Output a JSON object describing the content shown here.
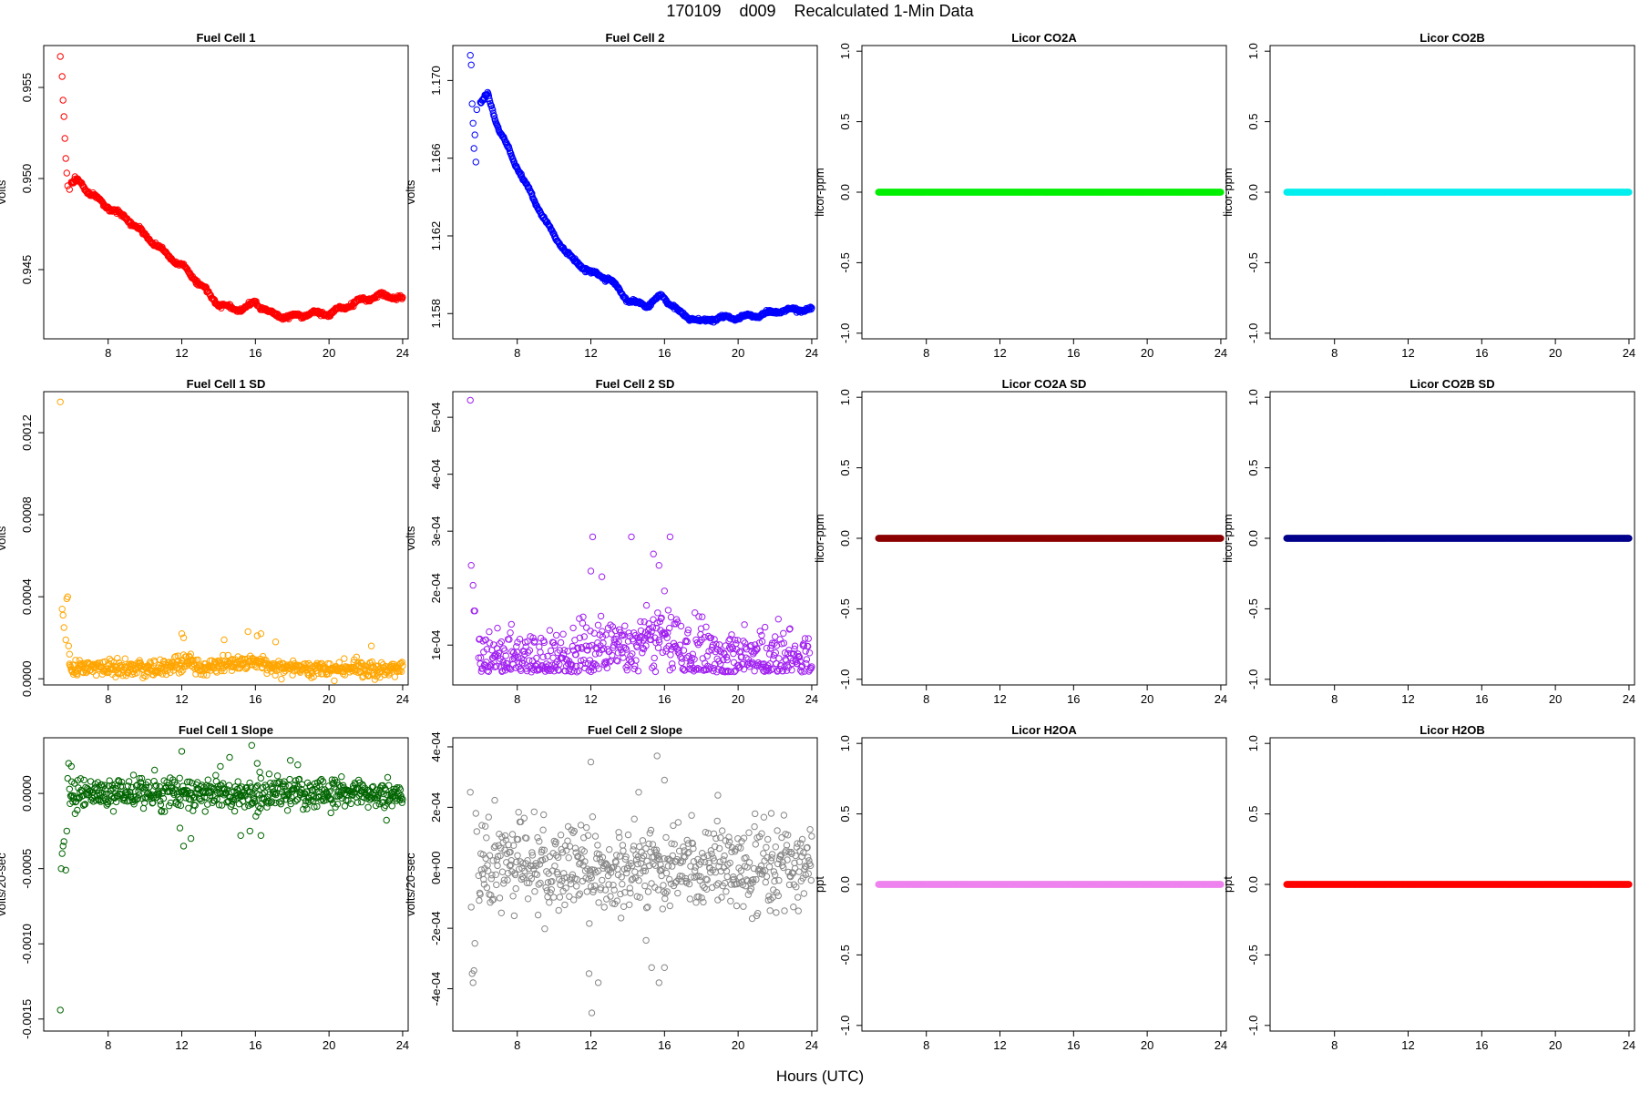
{
  "title": "170109    d009    Recalculated 1-Min Data",
  "x_axis_title": "Hours (UTC)",
  "chart_data": [
    {
      "id": "fc1",
      "type": "scatter",
      "title": "Fuel Cell 1",
      "ylabel": "volts",
      "color": "#ff0000",
      "xlim": [
        4.5,
        24.3
      ],
      "ylim": [
        0.9412,
        0.9573
      ],
      "xticks": [
        8,
        12,
        16,
        20,
        24
      ],
      "yticks": [
        0.945,
        0.95,
        0.955
      ],
      "ytick_labels": [
        "0.945",
        "0.950",
        "0.955"
      ],
      "points": [
        [
          5.4,
          0.9567
        ],
        [
          5.5,
          0.9556
        ],
        [
          5.55,
          0.9543
        ],
        [
          5.6,
          0.9534
        ],
        [
          5.65,
          0.9522
        ],
        [
          5.7,
          0.9511
        ],
        [
          5.75,
          0.9503
        ],
        [
          5.8,
          0.9496
        ],
        [
          5.9,
          0.9494
        ],
        [
          6.0,
          0.9498
        ],
        [
          6.2,
          0.9501
        ]
      ],
      "trend": [
        [
          6.0,
          0.9497
        ],
        [
          6.4,
          0.9499
        ],
        [
          7.0,
          0.9492
        ],
        [
          8.0,
          0.9484
        ],
        [
          9.0,
          0.9478
        ],
        [
          10.0,
          0.9469
        ],
        [
          11.0,
          0.946
        ],
        [
          12.0,
          0.9452
        ],
        [
          13.0,
          0.9442
        ],
        [
          14.0,
          0.9431
        ],
        [
          15.0,
          0.9428
        ],
        [
          15.5,
          0.9429
        ],
        [
          16.0,
          0.9432
        ],
        [
          17.0,
          0.9425
        ],
        [
          18.0,
          0.9424
        ],
        [
          19.0,
          0.9426
        ],
        [
          20.0,
          0.9426
        ],
        [
          21.0,
          0.943
        ],
        [
          22.0,
          0.9434
        ],
        [
          23.0,
          0.9436
        ],
        [
          24.0,
          0.9434
        ]
      ],
      "noise": 0.00012,
      "spread": 0.2,
      "n": 600
    },
    {
      "id": "fc2",
      "type": "scatter",
      "title": "Fuel Cell 2",
      "ylabel": "volts",
      "color": "#0000ff",
      "xlim": [
        4.5,
        24.3
      ],
      "ylim": [
        1.1567,
        1.1718
      ],
      "xticks": [
        8,
        12,
        16,
        20,
        24
      ],
      "yticks": [
        1.158,
        1.162,
        1.166,
        1.17
      ],
      "ytick_labels": [
        "1.158",
        "1.162",
        "1.166",
        "1.170"
      ],
      "points": [
        [
          5.45,
          1.1713
        ],
        [
          5.5,
          1.1708
        ],
        [
          5.55,
          1.1688
        ],
        [
          5.6,
          1.1678
        ],
        [
          5.65,
          1.1665
        ],
        [
          5.7,
          1.1672
        ],
        [
          5.75,
          1.1658
        ],
        [
          5.8,
          1.1685
        ]
      ],
      "trend": [
        [
          6.0,
          1.1688
        ],
        [
          6.4,
          1.1693
        ],
        [
          7.0,
          1.1675
        ],
        [
          8.0,
          1.1655
        ],
        [
          9.0,
          1.1637
        ],
        [
          10.0,
          1.162
        ],
        [
          11.0,
          1.1608
        ],
        [
          12.0,
          1.1601
        ],
        [
          13.0,
          1.1598
        ],
        [
          14.0,
          1.1587
        ],
        [
          15.0,
          1.1584
        ],
        [
          15.8,
          1.1589
        ],
        [
          16.5,
          1.1584
        ],
        [
          17.0,
          1.1579
        ],
        [
          18.0,
          1.1576
        ],
        [
          19.0,
          1.1578
        ],
        [
          20.0,
          1.1578
        ],
        [
          21.0,
          1.1579
        ],
        [
          22.0,
          1.1581
        ],
        [
          23.0,
          1.1582
        ],
        [
          24.0,
          1.1582
        ]
      ],
      "noise": 0.0001,
      "spread": 0.2,
      "n": 600
    },
    {
      "id": "co2a",
      "type": "scatter",
      "title": "Licor CO2A",
      "ylabel": "licor-ppm",
      "color": "#00ee00",
      "xlim": [
        4.5,
        24.3
      ],
      "ylim": [
        -1.04,
        1.04
      ],
      "xticks": [
        8,
        12,
        16,
        20,
        24
      ],
      "yticks": [
        -1,
        -0.5,
        0,
        0.5,
        1
      ],
      "ytick_labels": [
        "-1.0",
        "-0.5",
        "0.0",
        "0.5",
        "1.0"
      ],
      "constant": 0,
      "x_range": [
        5.4,
        24.0
      ],
      "n": 560
    },
    {
      "id": "co2b",
      "type": "scatter",
      "title": "Licor CO2B",
      "ylabel": "licor-ppm",
      "color": "#00eeee",
      "xlim": [
        4.5,
        24.3
      ],
      "ylim": [
        -1.04,
        1.04
      ],
      "xticks": [
        8,
        12,
        16,
        20,
        24
      ],
      "yticks": [
        -1,
        -0.5,
        0,
        0.5,
        1
      ],
      "ytick_labels": [
        "-1.0",
        "-0.5",
        "0.0",
        "0.5",
        "1.0"
      ],
      "constant": 0,
      "x_range": [
        5.4,
        24.0
      ],
      "n": 560
    },
    {
      "id": "fc1sd",
      "type": "scatter",
      "title": "Fuel Cell 1 SD",
      "ylabel": "volts",
      "color": "#ffa500",
      "xlim": [
        4.5,
        24.3
      ],
      "ylim": [
        -3e-05,
        0.0014
      ],
      "xticks": [
        8,
        12,
        16,
        20,
        24
      ],
      "yticks": [
        0,
        0.0004,
        0.0008,
        0.0012
      ],
      "ytick_labels": [
        "0.0000",
        "0.0004",
        "0.0008",
        "0.0012"
      ],
      "points": [
        [
          5.4,
          0.00135
        ],
        [
          5.5,
          0.00034
        ],
        [
          5.55,
          0.00031
        ],
        [
          5.6,
          0.00025
        ],
        [
          5.7,
          0.00019
        ],
        [
          5.75,
          0.00039
        ],
        [
          5.8,
          0.0004
        ],
        [
          5.85,
          0.00016
        ],
        [
          5.9,
          0.00012
        ],
        [
          12.0,
          0.00022
        ],
        [
          12.1,
          0.0002
        ],
        [
          14.3,
          0.00019
        ],
        [
          15.6,
          0.00023
        ],
        [
          16.1,
          0.00021
        ],
        [
          16.3,
          0.00022
        ],
        [
          17.1,
          0.00018
        ],
        [
          22.3,
          0.00016
        ]
      ],
      "baseline": 5e-05,
      "scale": 2e-05,
      "bumps": [
        [
          12,
          2,
          3e-05
        ],
        [
          14.8,
          3,
          2e-05
        ],
        [
          16,
          2,
          3e-05
        ]
      ],
      "n": 600
    },
    {
      "id": "fc2sd",
      "type": "scatter",
      "title": "Fuel Cell 2 SD",
      "ylabel": "volts",
      "color": "#a020f0",
      "xlim": [
        4.5,
        24.3
      ],
      "ylim": [
        3e-05,
        0.000545
      ],
      "xticks": [
        8,
        12,
        16,
        20,
        24
      ],
      "yticks": [
        0.0001,
        0.0002,
        0.0003,
        0.0004,
        0.0005
      ],
      "ytick_labels": [
        "1e-04",
        "2e-04",
        "3e-04",
        "4e-04",
        "5e-04"
      ],
      "points": [
        [
          5.45,
          0.00053
        ],
        [
          5.5,
          0.00024
        ],
        [
          5.6,
          0.000205
        ],
        [
          5.65,
          0.00016
        ],
        [
          5.7,
          0.00016
        ],
        [
          12.1,
          0.00029
        ],
        [
          12.0,
          0.00023
        ],
        [
          12.6,
          0.00022
        ],
        [
          14.2,
          0.00029
        ],
        [
          15.4,
          0.00026
        ],
        [
          16.3,
          0.00029
        ],
        [
          16.0,
          0.000195
        ],
        [
          15.7,
          0.00024
        ]
      ],
      "baseline": 7.5e-05,
      "scale": 3e-05,
      "bumps": [
        [
          12.5,
          4,
          2e-05
        ],
        [
          15.5,
          3,
          4e-05
        ]
      ],
      "n": 600
    },
    {
      "id": "co2asd",
      "type": "scatter",
      "title": "Licor CO2A SD",
      "ylabel": "licor-ppm",
      "color": "#8b0000",
      "xlim": [
        4.5,
        24.3
      ],
      "ylim": [
        -1.04,
        1.04
      ],
      "xticks": [
        8,
        12,
        16,
        20,
        24
      ],
      "yticks": [
        -1,
        -0.5,
        0,
        0.5,
        1
      ],
      "ytick_labels": [
        "-1.0",
        "-0.5",
        "0.0",
        "0.5",
        "1.0"
      ],
      "constant": 0,
      "x_range": [
        5.4,
        24.0
      ],
      "n": 560
    },
    {
      "id": "co2bsd",
      "type": "scatter",
      "title": "Licor CO2B SD",
      "ylabel": "licor-ppm",
      "color": "#00008b",
      "xlim": [
        4.5,
        24.3
      ],
      "ylim": [
        -1.04,
        1.04
      ],
      "xticks": [
        8,
        12,
        16,
        20,
        24
      ],
      "yticks": [
        -1,
        -0.5,
        0,
        0.5,
        1
      ],
      "ytick_labels": [
        "-1.0",
        "-0.5",
        "0.0",
        "0.5",
        "1.0"
      ],
      "constant": 0,
      "x_range": [
        5.4,
        24.0
      ],
      "n": 560
    },
    {
      "id": "fc1slope",
      "type": "scatter",
      "title": "Fuel Cell 1 Slope",
      "ylabel": "volts/20-sec",
      "color": "#006400",
      "xlim": [
        4.5,
        24.3
      ],
      "ylim": [
        -0.00158,
        0.00037
      ],
      "xticks": [
        8,
        12,
        16,
        20,
        24
      ],
      "yticks": [
        -0.0015,
        -0.001,
        -0.0005,
        0
      ],
      "ytick_labels": [
        "-0.0015",
        "-0.0010",
        "-0.0005",
        "0.0000"
      ],
      "points": [
        [
          5.4,
          -0.00144
        ],
        [
          5.45,
          -0.0005
        ],
        [
          5.5,
          -0.0004
        ],
        [
          5.55,
          -0.00035
        ],
        [
          5.6,
          -0.00032
        ],
        [
          5.7,
          -0.00051
        ],
        [
          5.75,
          -0.00025
        ],
        [
          5.8,
          0.0001
        ],
        [
          5.85,
          0.0002
        ],
        [
          6.0,
          0.00018
        ],
        [
          12.0,
          0.00028
        ],
        [
          11.9,
          -0.00023
        ],
        [
          12.1,
          -0.00035
        ],
        [
          12.5,
          -0.0003
        ],
        [
          14.1,
          0.00018
        ],
        [
          14.6,
          0.00024
        ],
        [
          15.2,
          -0.00028
        ],
        [
          15.8,
          0.00032
        ],
        [
          15.7,
          -0.00025
        ],
        [
          16.1,
          0.0002
        ],
        [
          16.3,
          -0.00028
        ],
        [
          17.9,
          0.00022
        ],
        [
          18.3,
          0.00019
        ]
      ],
      "baseline": 0,
      "scale": 5e-05,
      "bumps": [],
      "n": 600
    },
    {
      "id": "fc2slope",
      "type": "scatter",
      "title": "Fuel Cell 2 Slope",
      "ylabel": "volts/20-sec",
      "color": "#888888",
      "xlim": [
        4.5,
        24.3
      ],
      "ylim": [
        -0.00054,
        0.00043
      ],
      "xticks": [
        8,
        12,
        16,
        20,
        24
      ],
      "yticks": [
        -0.0004,
        -0.0002,
        0,
        0.0002,
        0.0004
      ],
      "ytick_labels": [
        "-4e-04",
        "-2e-04",
        "0e+00",
        "2e-04",
        "4e-04"
      ],
      "points": [
        [
          5.45,
          0.00025
        ],
        [
          5.5,
          -0.00013
        ],
        [
          5.55,
          -0.00035
        ],
        [
          5.6,
          -0.00038
        ],
        [
          5.65,
          -0.00034
        ],
        [
          5.7,
          -0.00025
        ],
        [
          5.75,
          0.00018
        ],
        [
          5.8,
          0.00012
        ],
        [
          12.0,
          0.00035
        ],
        [
          11.9,
          -0.00035
        ],
        [
          12.05,
          -0.00048
        ],
        [
          12.4,
          -0.00038
        ],
        [
          15.6,
          0.00037
        ],
        [
          16.0,
          0.00029
        ],
        [
          15.3,
          -0.00033
        ],
        [
          15.7,
          -0.00038
        ],
        [
          16.0,
          -0.00033
        ],
        [
          18.9,
          0.00024
        ],
        [
          21.8,
          0.00018
        ],
        [
          14.6,
          0.00025
        ],
        [
          15.0,
          -0.00024
        ]
      ],
      "baseline": 0,
      "scale": 7e-05,
      "bumps": [],
      "n": 600
    },
    {
      "id": "h2oa",
      "type": "scatter",
      "title": "Licor H2OA",
      "ylabel": "ppt",
      "color": "#ee82ee",
      "xlim": [
        4.5,
        24.3
      ],
      "ylim": [
        -1.04,
        1.04
      ],
      "xticks": [
        8,
        12,
        16,
        20,
        24
      ],
      "yticks": [
        -1,
        -0.5,
        0,
        0.5,
        1
      ],
      "ytick_labels": [
        "-1.0",
        "-0.5",
        "0.0",
        "0.5",
        "1.0"
      ],
      "constant": 0,
      "x_range": [
        5.4,
        24.0
      ],
      "n": 560
    },
    {
      "id": "h2ob",
      "type": "scatter",
      "title": "Licor H2OB",
      "ylabel": "ppt",
      "color": "#ff0000",
      "xlim": [
        4.5,
        24.3
      ],
      "ylim": [
        -1.04,
        1.04
      ],
      "xticks": [
        8,
        12,
        16,
        20,
        24
      ],
      "yticks": [
        -1,
        -0.5,
        0,
        0.5,
        1
      ],
      "ytick_labels": [
        "-1.0",
        "-0.5",
        "0.0",
        "0.5",
        "1.0"
      ],
      "constant": 0,
      "x_range": [
        5.4,
        24.0
      ],
      "n": 560
    }
  ]
}
